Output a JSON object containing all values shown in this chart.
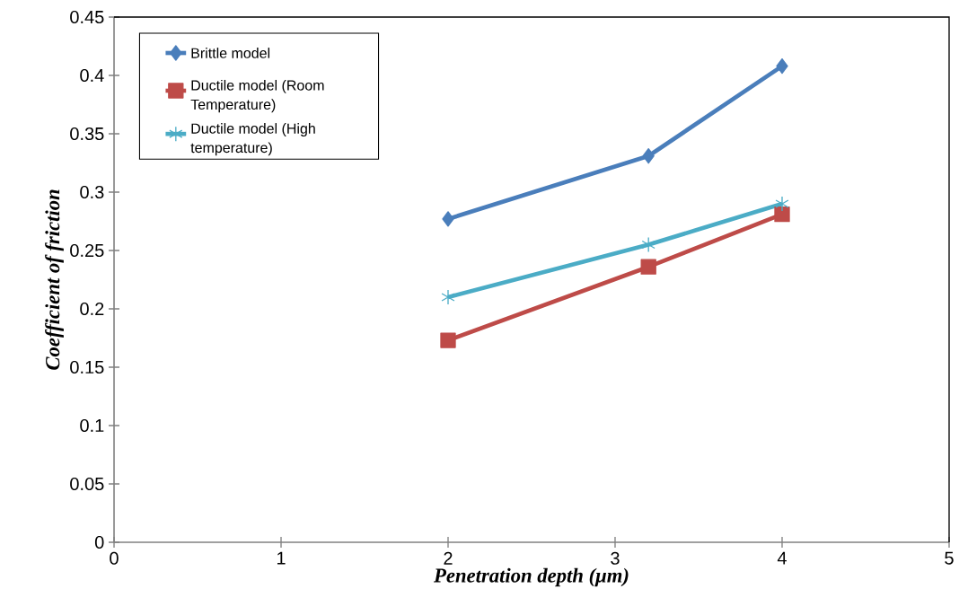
{
  "chart_data": {
    "type": "line",
    "xlabel": "Penetration depth (μm)",
    "ylabel": "Coefficient of friction",
    "x": [
      2,
      3.2,
      4
    ],
    "series": [
      {
        "name": "Brittle model",
        "color": "#4a7ebb",
        "values": [
          0.277,
          0.331,
          0.408
        ],
        "marker": "diamond"
      },
      {
        "name": "Ductile model (Room Temperature)",
        "color": "#be4b48",
        "values": [
          0.173,
          0.236,
          0.281
        ],
        "marker": "square"
      },
      {
        "name": "Ductile model (High temperature)",
        "color": "#4bacc6",
        "values": [
          0.21,
          0.255,
          0.29
        ],
        "marker": "cross"
      }
    ],
    "xlim": [
      0,
      5
    ],
    "xticks": [
      0,
      1,
      2,
      3,
      4,
      5
    ],
    "ylim": [
      0,
      0.45
    ],
    "yticks": [
      0,
      0.05,
      0.1,
      0.15,
      0.2,
      0.25,
      0.3,
      0.35,
      0.4,
      0.45
    ],
    "grid": false,
    "legend": "top left",
    "line_style": "solid"
  }
}
